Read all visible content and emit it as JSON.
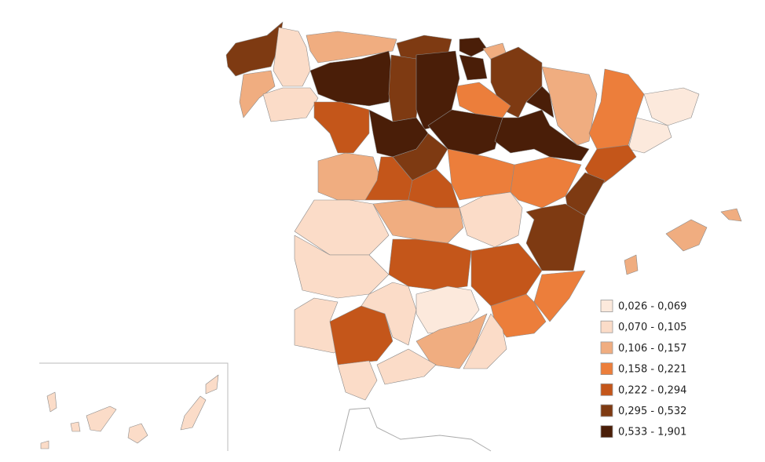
{
  "legend": {
    "items": [
      {
        "label": "0,026 - 0,069",
        "color": "#fce9dc"
      },
      {
        "label": "0,070 - 0,105",
        "color": "#fbdcc8"
      },
      {
        "label": "0,106 - 0,157",
        "color": "#f0ad80"
      },
      {
        "label": "0,158 - 0,221",
        "color": "#ec7e3b"
      },
      {
        "label": "0,222 - 0,294",
        "color": "#c4561a"
      },
      {
        "label": "0,295 - 0,532",
        "color": "#7e3a12"
      },
      {
        "label": "0,533 - 1,901",
        "color": "#4a1e08"
      }
    ]
  }
}
